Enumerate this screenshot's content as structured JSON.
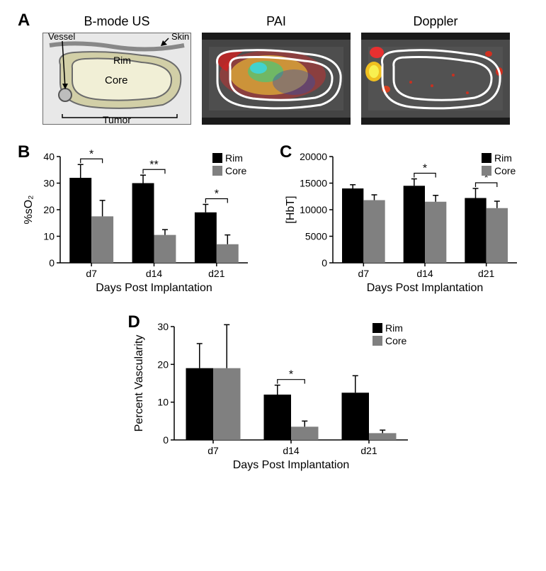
{
  "panelA": {
    "label": "A",
    "titles": [
      "B-mode US",
      "PAI",
      "Doppler"
    ],
    "schematic": {
      "labels": {
        "vessel": "Vessel",
        "skin": "Skin",
        "rim": "Rim",
        "core": "Core",
        "tumor": "Tumor"
      },
      "bgColor": "#e8e8e8",
      "rimColor": "#d2cfa7",
      "coreColor": "#f1efd6",
      "strokeColor": "#6b6b6b"
    }
  },
  "panelB": {
    "label": "B",
    "ylabel": "%sO₂",
    "xlabel": "Days Post Implantation",
    "categories": [
      "d7",
      "d14",
      "d21"
    ],
    "ylim": [
      0,
      40
    ],
    "ytick_step": 10,
    "series": [
      {
        "name": "Rim",
        "color": "#000000",
        "values": [
          32,
          30,
          19
        ],
        "errors": [
          5,
          3,
          3
        ]
      },
      {
        "name": "Core",
        "color": "#808080",
        "values": [
          17.5,
          10.5,
          7
        ],
        "errors": [
          6,
          2,
          3.5
        ]
      }
    ],
    "sig": [
      {
        "cat": "d7",
        "label": "*"
      },
      {
        "cat": "d14",
        "label": "**"
      },
      {
        "cat": "d21",
        "label": "*"
      }
    ],
    "bar_width": 0.35,
    "legend_pos": "topright"
  },
  "panelC": {
    "label": "C",
    "ylabel": "[HbT]",
    "xlabel": "Days Post Implantation",
    "categories": [
      "d7",
      "d14",
      "d21"
    ],
    "ylim": [
      0,
      20000
    ],
    "ytick_step": 5000,
    "series": [
      {
        "name": "Rim",
        "color": "#000000",
        "values": [
          14000,
          14500,
          12200
        ],
        "errors": [
          700,
          1300,
          1800
        ]
      },
      {
        "name": "Core",
        "color": "#808080",
        "values": [
          11800,
          11500,
          10300
        ],
        "errors": [
          1000,
          1200,
          1300
        ]
      }
    ],
    "sig": [
      {
        "cat": "d14",
        "label": "*"
      },
      {
        "cat": "d21",
        "label": "*"
      }
    ],
    "bar_width": 0.35,
    "legend_pos": "topright"
  },
  "panelD": {
    "label": "D",
    "ylabel": "Percent Vascularity",
    "xlabel": "Days Post Implantation",
    "categories": [
      "d7",
      "d14",
      "d21"
    ],
    "ylim": [
      0,
      30
    ],
    "ytick_step": 10,
    "series": [
      {
        "name": "Rim",
        "color": "#000000",
        "values": [
          19,
          12,
          12.5
        ],
        "errors": [
          6.5,
          2.5,
          4.5
        ]
      },
      {
        "name": "Core",
        "color": "#808080",
        "values": [
          19,
          3.5,
          1.8
        ],
        "errors": [
          11.5,
          1.5,
          0.8
        ]
      }
    ],
    "sig": [
      {
        "cat": "d14",
        "label": "*"
      }
    ],
    "bar_width": 0.35,
    "legend_pos": "topright"
  },
  "style": {
    "axis_color": "#000000",
    "tick_font_size": 14,
    "label_font_size": 16,
    "legend_font_size": 14,
    "sig_font_size": 16
  }
}
